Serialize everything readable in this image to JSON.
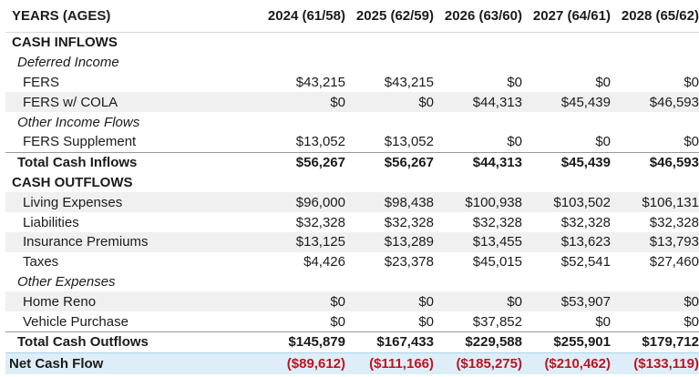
{
  "title": "Retirement Cash Flow Projection Table",
  "colors": {
    "text": "#1b1b1b",
    "stripe_gray": "#f0f0f0",
    "header_rule": "#d8d8d8",
    "total_rule": "#999999",
    "net_row_bg": "#ddeef8",
    "net_row_rule": "#abd2e8",
    "negative_red": "#c1121f"
  },
  "chart_data": {
    "type": "table",
    "columns": [
      "YEARS (AGES)",
      "2024 (61/58)",
      "2025 (62/59)",
      "2026 (63/60)",
      "2027 (64/61)",
      "2028 (65/62)"
    ],
    "rows": [
      {
        "label": "CASH INFLOWS",
        "variant": "section",
        "values": [
          "",
          "",
          "",
          "",
          ""
        ]
      },
      {
        "label": "Deferred Income",
        "variant": "subsection",
        "values": [
          "",
          "",
          "",
          "",
          ""
        ]
      },
      {
        "label": "FERS",
        "variant": "item",
        "values": [
          "$43,215",
          "$43,215",
          "$0",
          "$0",
          "$0"
        ]
      },
      {
        "label": "FERS w/ COLA",
        "variant": "item-shaded",
        "values": [
          "$0",
          "$0",
          "$44,313",
          "$45,439",
          "$46,593"
        ]
      },
      {
        "label": "Other Income Flows",
        "variant": "subsection",
        "values": [
          "",
          "",
          "",
          "",
          ""
        ]
      },
      {
        "label": "FERS Supplement",
        "variant": "item",
        "values": [
          "$13,052",
          "$13,052",
          "$0",
          "$0",
          "$0"
        ]
      },
      {
        "label": "Total Cash Inflows",
        "variant": "total",
        "values": [
          "$56,267",
          "$56,267",
          "$44,313",
          "$45,439",
          "$46,593"
        ]
      },
      {
        "label": "CASH OUTFLOWS",
        "variant": "section",
        "values": [
          "",
          "",
          "",
          "",
          ""
        ]
      },
      {
        "label": "Living Expenses",
        "variant": "item-shaded",
        "values": [
          "$96,000",
          "$98,438",
          "$100,938",
          "$103,502",
          "$106,131"
        ]
      },
      {
        "label": "Liabilities",
        "variant": "item",
        "values": [
          "$32,328",
          "$32,328",
          "$32,328",
          "$32,328",
          "$32,328"
        ]
      },
      {
        "label": "Insurance Premiums",
        "variant": "item-shaded",
        "values": [
          "$13,125",
          "$13,289",
          "$13,455",
          "$13,623",
          "$13,793"
        ]
      },
      {
        "label": "Taxes",
        "variant": "item",
        "values": [
          "$4,426",
          "$23,378",
          "$45,015",
          "$52,541",
          "$27,460"
        ]
      },
      {
        "label": "Other Expenses",
        "variant": "subsection",
        "values": [
          "",
          "",
          "",
          "",
          ""
        ]
      },
      {
        "label": "Home Reno",
        "variant": "item-shaded",
        "values": [
          "$0",
          "$0",
          "$0",
          "$53,907",
          "$0"
        ]
      },
      {
        "label": "Vehicle Purchase",
        "variant": "item",
        "values": [
          "$0",
          "$0",
          "$37,852",
          "$0",
          "$0"
        ]
      },
      {
        "label": "Total Cash Outflows",
        "variant": "total",
        "values": [
          "$145,879",
          "$167,433",
          "$229,588",
          "$255,901",
          "$179,712"
        ]
      },
      {
        "label": "Net Cash Flow",
        "variant": "net",
        "values": [
          "($89,612)",
          "($111,166)",
          "($185,275)",
          "($210,462)",
          "($133,119)"
        ]
      }
    ]
  }
}
